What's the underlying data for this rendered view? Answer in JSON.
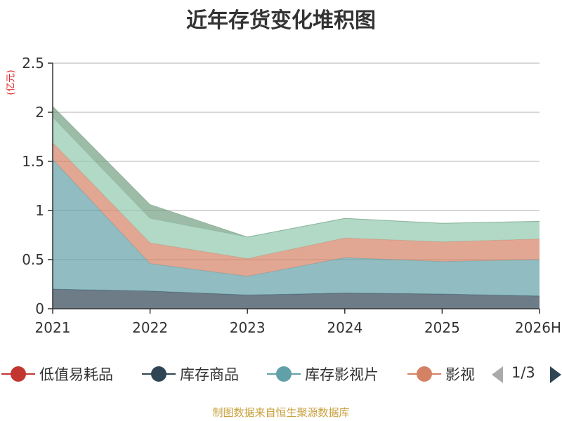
{
  "chart_data": {
    "type": "area",
    "stacked": true,
    "title": "近年存货变化堆积图",
    "unit_label": "(亿元)",
    "categories": [
      "2021",
      "2022",
      "2023",
      "2024",
      "2025",
      "2026H"
    ],
    "ylim": [
      0,
      2.5
    ],
    "yticks": [
      "0",
      "0.5",
      "1",
      "1.5",
      "2",
      "2.5"
    ],
    "grid": true,
    "series": [
      {
        "name": "库存商品",
        "color": "#2f4554",
        "values": [
          0.2,
          0.18,
          0.14,
          0.16,
          0.15,
          0.13
        ]
      },
      {
        "name": "库存影视片",
        "color": "#61a0a8",
        "values": [
          1.32,
          0.28,
          0.19,
          0.36,
          0.33,
          0.37
        ]
      },
      {
        "name": "影视",
        "color": "#d48265",
        "values": [
          0.17,
          0.21,
          0.18,
          0.2,
          0.2,
          0.21
        ]
      },
      {
        "name": "",
        "color": "#91c7ae",
        "values": [
          0.26,
          0.25,
          0.22,
          0.2,
          0.19,
          0.18
        ]
      },
      {
        "name": "",
        "color": "#749f83",
        "values": [
          0.11,
          0.14,
          0.0,
          0.0,
          0.0,
          0.0
        ]
      }
    ],
    "legend_position": "bottom"
  },
  "legend": {
    "items": [
      {
        "label": "低值易耗品",
        "color": "#c23531"
      },
      {
        "label": "库存商品",
        "color": "#2f4554"
      },
      {
        "label": "库存影视片",
        "color": "#61a0a8"
      },
      {
        "label": "影视",
        "color": "#d48265"
      }
    ],
    "page_indicator": "1/3"
  },
  "source_note": "制图数据来自恒生聚源数据库"
}
